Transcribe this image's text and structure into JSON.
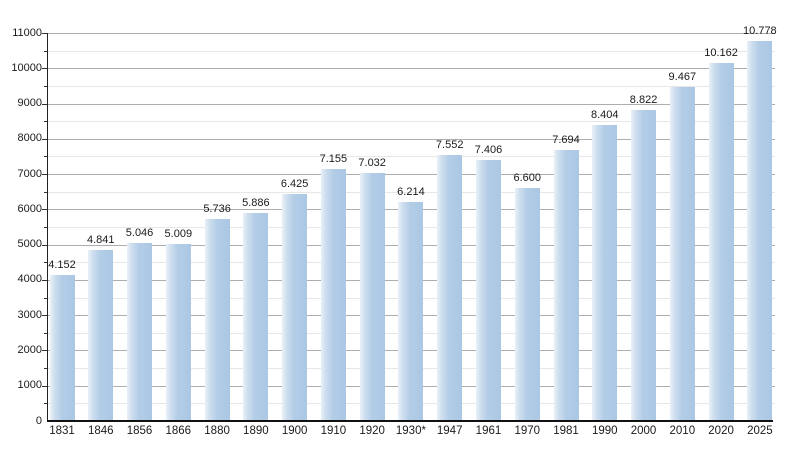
{
  "chart_data": {
    "type": "bar",
    "title": "",
    "categories": [
      "1831",
      "1846",
      "1856",
      "1866",
      "1880",
      "1890",
      "1900",
      "1910",
      "1920",
      "1930*",
      "1947",
      "1961",
      "1970",
      "1981",
      "1990",
      "2000",
      "2010",
      "2020",
      "2025"
    ],
    "values": [
      4152,
      4841,
      5046,
      5009,
      5736,
      5886,
      6425,
      7155,
      7032,
      6214,
      7552,
      7406,
      6600,
      7694,
      8404,
      8822,
      9467,
      10162,
      10778
    ],
    "value_labels": [
      "4.152",
      "4.841",
      "5.046",
      "5.009",
      "5.736",
      "5.886",
      "6.425",
      "7.155",
      "7.032",
      "6.214",
      "7.552",
      "7.406",
      "6.600",
      "7.694",
      "8.404",
      "8.822",
      "9.467",
      "10.162",
      "10.778"
    ],
    "xlabel": "",
    "ylabel": "",
    "ylim": [
      0,
      11000
    ],
    "y_major_step": 1000,
    "y_minor_step": 500,
    "y_ticks": [
      "0",
      "1000",
      "2000",
      "3000",
      "4000",
      "5000",
      "6000",
      "7000",
      "8000",
      "9000",
      "10000",
      "11000"
    ],
    "grid": true,
    "legend": "none",
    "colors": {
      "bar_fill": "#aac7e3",
      "bar_fill_light_edge": "#e9f1f8",
      "grid_major": "#adadad",
      "grid_minor": "#e7e7e7",
      "axis": "#111111",
      "text": "#1a1a1a",
      "background": "#ffffff"
    }
  }
}
